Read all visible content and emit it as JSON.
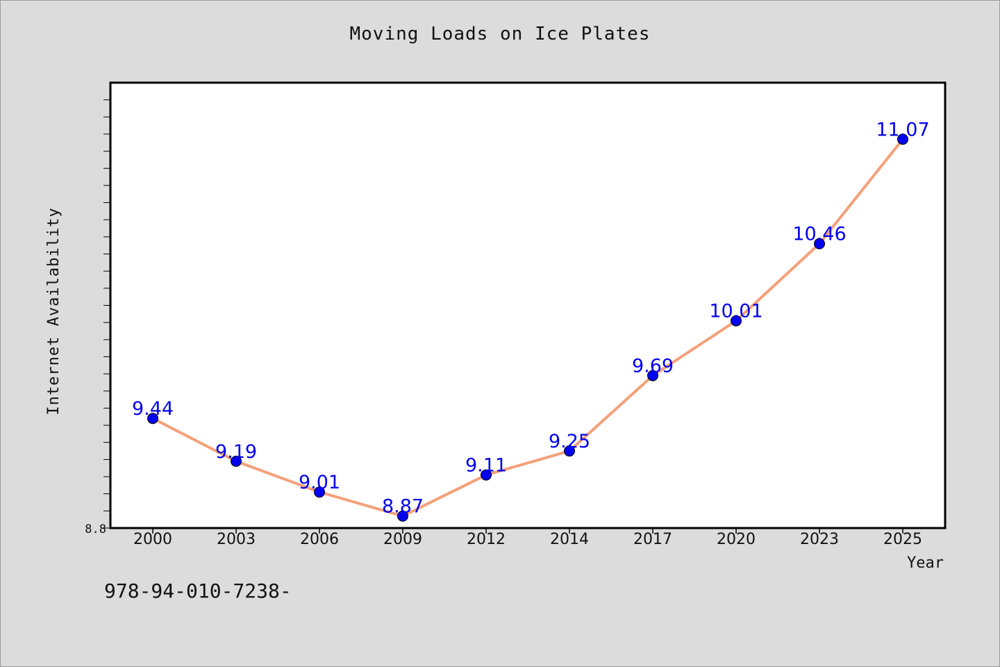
{
  "chart_data": {
    "type": "line",
    "title": "Moving Loads on Ice Plates",
    "xlabel": "Year",
    "ylabel": "Internet Availability",
    "categories": [
      "2000",
      "2003",
      "2006",
      "2009",
      "2012",
      "2014",
      "2017",
      "2020",
      "2023",
      "2025"
    ],
    "series": [
      {
        "values": [
          9.44,
          9.19,
          9.01,
          8.87,
          9.11,
          9.25,
          9.69,
          10.01,
          10.46,
          11.07
        ],
        "line_color": "#f4a07a",
        "marker_color": "#0000ee"
      }
    ],
    "data_labels": [
      "9.44",
      "9.19",
      "9.01",
      "8.87",
      "9.11",
      "9.25",
      "9.69",
      "10.01",
      "10.46",
      "11.07"
    ],
    "ylim": [
      8.8,
      11.4
    ],
    "y_tick_labels": [
      "8.8"
    ],
    "grid": false,
    "legend": "none"
  },
  "footer": {
    "isbn": "978-94-010-7238-"
  },
  "colors": {
    "background": "#dcdcdc",
    "plot_background": "#ffffff",
    "label_color": "#0000ee"
  }
}
